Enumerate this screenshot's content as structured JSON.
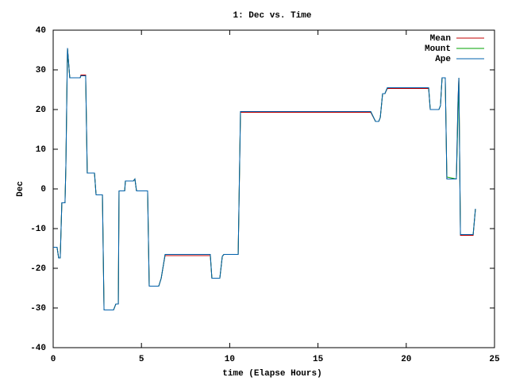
{
  "chart_data": {
    "type": "line",
    "title": "1: Dec vs. Time",
    "x_label": "time (Elapse Hours)",
    "y_label": "Dec",
    "x": [
      0,
      0.22,
      0.31,
      0.4,
      0.49,
      0.67,
      0.72,
      0.81,
      0.94,
      1.53,
      1.57,
      1.84,
      1.93,
      2.34,
      2.43,
      2.79,
      2.88,
      3.42,
      3.55,
      3.69,
      3.73,
      4.05,
      4.09,
      4.54,
      4.63,
      4.72,
      5.35,
      5.44,
      5.98,
      6.12,
      6.25,
      6.34,
      8.9,
      8.99,
      9.44,
      9.58,
      9.67,
      10.48,
      10.61,
      10.7,
      17.99,
      18.26,
      18.44,
      18.53,
      18.66,
      18.79,
      18.93,
      21.27,
      21.36,
      21.85,
      21.94,
      22.03,
      22.21,
      22.3,
      22.84,
      22.93,
      22.98,
      23.07,
      23.79,
      23.92
    ],
    "series": [
      {
        "name": "Mean",
        "color": "#c00000",
        "values": [
          -14.7,
          -14.7,
          -17.4,
          -17.4,
          -3.5,
          -3.5,
          6,
          35.5,
          28,
          28,
          28.7,
          28.7,
          4,
          4,
          -1.5,
          -1.5,
          -30.5,
          -30.5,
          -29,
          -29,
          -0.5,
          -0.5,
          2,
          2,
          2.5,
          -0.5,
          -0.5,
          -24.5,
          -24.5,
          -22.5,
          -19,
          -16.8,
          -16.8,
          -22.5,
          -22.5,
          -17,
          -16.5,
          -16.5,
          19.3,
          19.3,
          19.3,
          17,
          17,
          18,
          24,
          24,
          25.3,
          25.3,
          20,
          20,
          21,
          28,
          28,
          2.5,
          2.5,
          22,
          28,
          -11.7,
          -11.7,
          -5
        ]
      },
      {
        "name": "Mount",
        "color": "#00a000",
        "values": [
          -14.7,
          -14.7,
          -17.4,
          -17.4,
          -3.5,
          -3.5,
          6,
          35.5,
          28,
          28,
          28.5,
          28.5,
          4,
          4,
          -1.5,
          -1.5,
          -30.5,
          -30.5,
          -29,
          -29,
          -0.5,
          -0.5,
          2,
          2,
          2.5,
          -0.5,
          -0.5,
          -24.5,
          -24.5,
          -22.5,
          -19,
          -16.5,
          -16.5,
          -22.5,
          -22.5,
          -17,
          -16.5,
          -16.5,
          19.5,
          19.5,
          19.5,
          17,
          17,
          18,
          24,
          24,
          25.5,
          25.5,
          20,
          20,
          21,
          28,
          28,
          3,
          2.5,
          18,
          28,
          -11.5,
          -11.5,
          -5
        ]
      },
      {
        "name": "Ape",
        "color": "#0060ad",
        "values": [
          -14.7,
          -14.7,
          -17.4,
          -17.4,
          -3.5,
          -3.5,
          6,
          35.5,
          28,
          28,
          28.5,
          28.5,
          4,
          4,
          -1.5,
          -1.5,
          -30.5,
          -30.5,
          -29,
          -29,
          -0.5,
          -0.5,
          2,
          2,
          2.5,
          -0.5,
          -0.5,
          -24.5,
          -24.5,
          -22.5,
          -19,
          -16.5,
          -16.5,
          -22.5,
          -22.5,
          -17,
          -16.5,
          -16.5,
          19.5,
          19.5,
          19.5,
          17,
          17,
          18,
          24,
          24,
          25.5,
          25.5,
          20,
          20,
          21,
          28,
          28,
          2.5,
          2.5,
          22,
          28,
          -11.5,
          -11.5,
          -5
        ]
      }
    ],
    "xlim": [
      0,
      25
    ],
    "xticks": [
      0,
      5,
      10,
      15,
      20,
      25
    ],
    "ylim": [
      -40,
      40
    ],
    "yticks": [
      -40,
      -30,
      -20,
      -10,
      0,
      10,
      20,
      30,
      40
    ],
    "legend": "top-right"
  }
}
